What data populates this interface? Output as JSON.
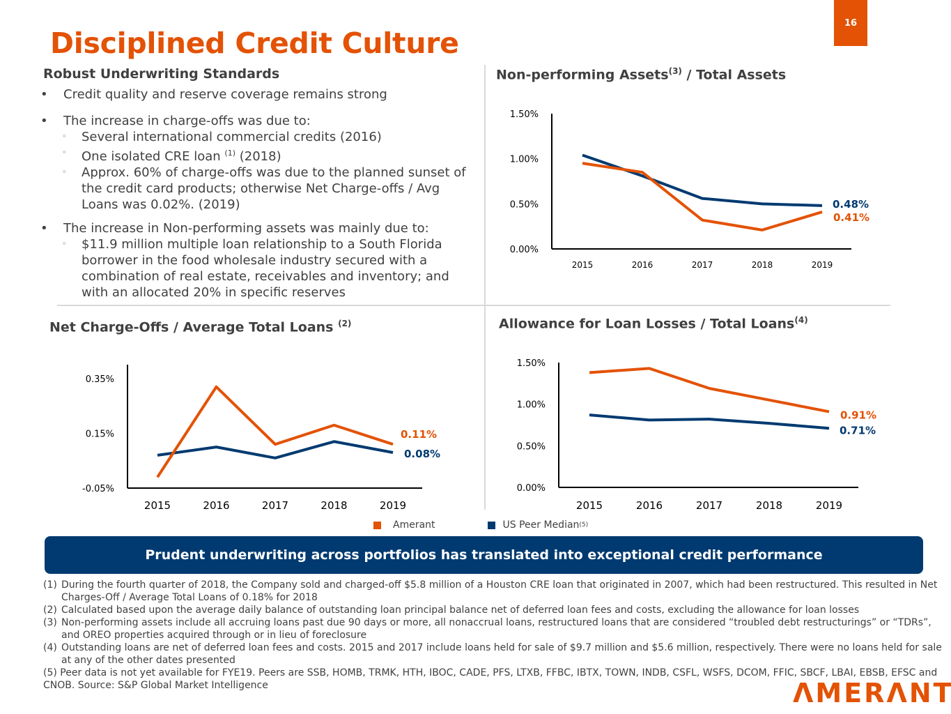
{
  "page_number": "16",
  "title": "Disciplined Credit Culture",
  "left_section": {
    "heading": "Robust Underwriting Standards",
    "bullets": [
      {
        "text": "Credit quality and reserve coverage remains strong",
        "subs": []
      },
      {
        "text": "The increase in charge-offs was due to:",
        "subs": [
          {
            "text": "Several international commercial credits (2016)"
          },
          {
            "pre": "One isolated CRE loan ",
            "sup": "(1)",
            "post": " (2018)"
          },
          {
            "text": "Approx. 60% of charge-offs was due to the planned sunset of the credit card products; otherwise Net Charge-offs / Avg Loans was 0.02%. (2019)"
          }
        ]
      },
      {
        "text": "The increase in Non-performing assets was mainly due to:",
        "subs": [
          {
            "text": "$11.9 million multiple loan relationship to a South Florida borrower in the food wholesale industry secured with a combination of real estate, receivables and inventory; and with an allocated 20% in specific reserves"
          }
        ]
      }
    ],
    "sub_marker": "◦"
  },
  "colors": {
    "amerant": "#E35205",
    "peer": "#003A70"
  },
  "chart_data": [
    {
      "id": "npa",
      "type": "line",
      "title": "Non-performing Assets",
      "title_sup": "(3)",
      "title_post": " / Total Assets",
      "categories": [
        "2015",
        "2016",
        "2017",
        "2018",
        "2019"
      ],
      "yticks": [
        "0.00%",
        "0.50%",
        "1.00%",
        "1.50%"
      ],
      "ytick_values": [
        0,
        0.5,
        1.0,
        1.5
      ],
      "ylim": [
        0,
        1.5
      ],
      "series": [
        {
          "name": "Amerant",
          "values": [
            0.95,
            0.85,
            0.32,
            0.21,
            0.41
          ],
          "end_label": "0.41%"
        },
        {
          "name": "US Peer Median",
          "values": [
            1.04,
            0.81,
            0.56,
            0.5,
            0.48
          ],
          "end_label": "0.48%"
        }
      ]
    },
    {
      "id": "nco",
      "type": "line",
      "title": "Net Charge-Offs / Average Total Loans ",
      "title_sup": "(2)",
      "title_post": "",
      "categories": [
        "2015",
        "2016",
        "2017",
        "2018",
        "2019"
      ],
      "yticks": [
        "-0.05%",
        "0.15%",
        "0.35%"
      ],
      "ytick_values": [
        -0.05,
        0.15,
        0.35
      ],
      "ylim": [
        -0.05,
        0.35
      ],
      "series": [
        {
          "name": "Amerant",
          "values": [
            -0.01,
            0.32,
            0.11,
            0.18,
            0.11
          ],
          "end_label": "0.11%"
        },
        {
          "name": "US Peer Median",
          "values": [
            0.07,
            0.1,
            0.06,
            0.12,
            0.08
          ],
          "end_label": "0.08%"
        }
      ]
    },
    {
      "id": "all",
      "type": "line",
      "title": "Allowance for Loan Losses / Total Loans",
      "title_sup": "(4)",
      "title_post": "",
      "categories": [
        "2015",
        "2016",
        "2017",
        "2018",
        "2019"
      ],
      "yticks": [
        "0.00%",
        "0.50%",
        "1.00%",
        "1.50%"
      ],
      "ytick_values": [
        0,
        0.5,
        1.0,
        1.5
      ],
      "ylim": [
        0,
        1.5
      ],
      "series": [
        {
          "name": "Amerant",
          "values": [
            1.38,
            1.43,
            1.19,
            1.05,
            0.91
          ],
          "end_label": "0.91%"
        },
        {
          "name": "US Peer Median",
          "values": [
            0.87,
            0.81,
            0.82,
            0.77,
            0.71
          ],
          "end_label": "0.71%"
        }
      ]
    }
  ],
  "legend": [
    {
      "label": "Amerant",
      "sup": ""
    },
    {
      "label": "US Peer Median",
      "sup": "(5)"
    }
  ],
  "banner": "Prudent underwriting across portfolios has translated into exceptional credit performance",
  "footnotes": [
    {
      "num": "(1)",
      "text": "During the fourth quarter of 2018, the Company sold and charged-off $5.8 million of a Houston CRE loan that originated in 2007, which had been restructured. This resulted in Net Charges-Off / Average Total Loans of 0.18% for 2018"
    },
    {
      "num": "(2)",
      "text": "Calculated based upon the average daily balance of outstanding loan principal balance net of deferred loan fees and costs, excluding the allowance for loan losses"
    },
    {
      "num": "(3)",
      "text": "Non-performing assets include all accruing loans past due 90 days or more, all nonaccrual loans, restructured loans that are considered “troubled debt restructurings” or “TDRs”, and OREO properties acquired through or in lieu of foreclosure"
    },
    {
      "num": "(4)",
      "text": "Outstanding loans are net of deferred loan fees and costs. 2015 and 2017 include loans held for sale of $9.7 million and $5.6 million, respectively. There were no loans held for sale at any of the other dates presented"
    },
    {
      "num": "(5)",
      "text": " Peer data is not yet available for FYE19.  Peers are SSB, HOMB, TRMK, HTH, IBOC, CADE, PFS, LTXB, FFBC, IBTX, TOWN, INDB, CSFL, WSFS, DCOM, FFIC, SBCF, LBAI, EBSB, EFSC and CNOB. Source: S&P Global Market Intelligence"
    }
  ],
  "logo": "ΛMERΛNT"
}
